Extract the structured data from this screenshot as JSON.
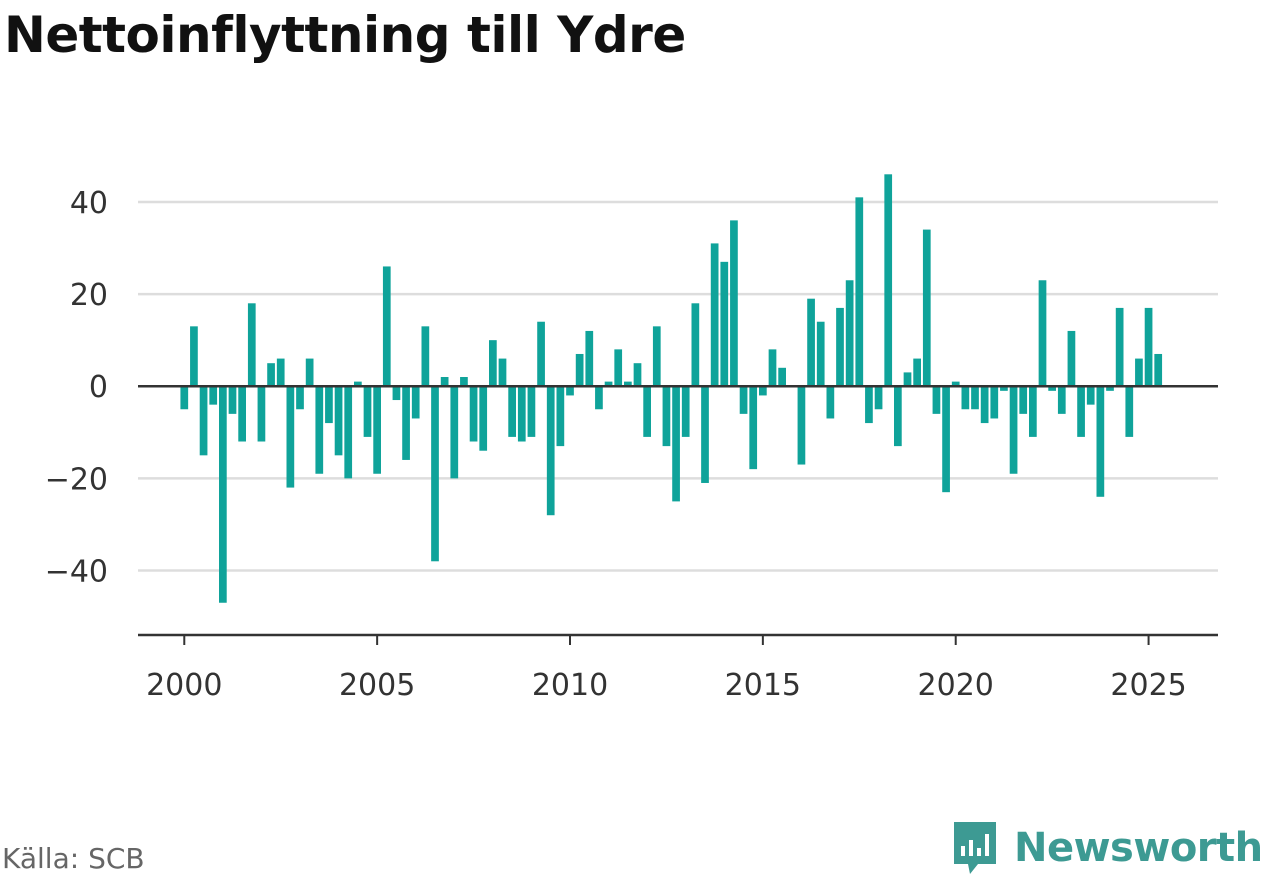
{
  "title": "Nettoinflyttning till Ydre",
  "source": "Källa: SCB",
  "brand": {
    "name": "Newsworthy",
    "color": "#3d9a93",
    "icon": "newsworthy-logo-icon"
  },
  "colors": {
    "bar": "#0fa39a",
    "grid": "#dddddd",
    "axis": "#333333",
    "tick_text": "#333333"
  },
  "chart_data": {
    "type": "bar",
    "title": "Nettoinflyttning till Ydre",
    "xlabel": "",
    "ylabel": "",
    "x_start": 2000.0,
    "x_step": 0.25,
    "values": [
      -5,
      13,
      -15,
      -4,
      -47,
      -6,
      -12,
      18,
      -12,
      5,
      6,
      -22,
      -5,
      6,
      -19,
      -8,
      -15,
      -20,
      1,
      -11,
      -19,
      26,
      -3,
      -16,
      -7,
      13,
      -38,
      2,
      -20,
      2,
      -12,
      -14,
      10,
      6,
      -11,
      -12,
      -11,
      14,
      -28,
      -13,
      -2,
      7,
      12,
      -5,
      1,
      8,
      1,
      5,
      -11,
      13,
      -13,
      -25,
      -11,
      18,
      -21,
      31,
      27,
      36,
      -6,
      -18,
      -2,
      8,
      4,
      0,
      -17,
      19,
      14,
      -7,
      17,
      23,
      41,
      -8,
      -5,
      46,
      -13,
      3,
      6,
      34,
      -6,
      -23,
      1,
      -5,
      -5,
      -8,
      -7,
      -1,
      -19,
      -6,
      -11,
      23,
      -1,
      -6,
      12,
      -11,
      -4,
      -24,
      -1,
      17,
      -11,
      6,
      17,
      7
    ],
    "y_ticks": [
      40,
      20,
      0,
      -20,
      -40
    ],
    "y_tick_labels": [
      "40",
      "20",
      "0",
      "−20",
      "−40"
    ],
    "x_ticks": [
      2000,
      2005,
      2010,
      2015,
      2020,
      2025
    ],
    "x_tick_labels": [
      "2000",
      "2005",
      "2010",
      "2015",
      "2020",
      "2025"
    ],
    "ylim": [
      -54,
      46.5
    ],
    "xlim": [
      1998.8,
      2026.8
    ],
    "grid": true,
    "legend": "none"
  }
}
